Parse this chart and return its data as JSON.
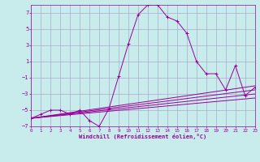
{
  "xlabel": "Windchill (Refroidissement éolien,°C)",
  "bg_color": "#c8ecec",
  "grid_color": "#aaaacc",
  "line_color": "#990099",
  "xmin": 0,
  "xmax": 23,
  "ymin": -7,
  "ymax": 8,
  "yticks": [
    -7,
    -5,
    -3,
    -1,
    1,
    3,
    5,
    7
  ],
  "xticks": [
    0,
    1,
    2,
    3,
    4,
    5,
    6,
    7,
    8,
    9,
    10,
    11,
    12,
    13,
    14,
    15,
    16,
    17,
    18,
    19,
    20,
    21,
    22,
    23
  ],
  "main_x": [
    0,
    1,
    2,
    3,
    4,
    5,
    6,
    7,
    8,
    9,
    10,
    11,
    12,
    13,
    14,
    15,
    16,
    17,
    18,
    19,
    20,
    21,
    22,
    23
  ],
  "main_y": [
    -6.0,
    -5.5,
    -5.0,
    -5.0,
    -5.5,
    -5.0,
    -6.3,
    -7.0,
    -4.8,
    -0.8,
    3.2,
    6.8,
    8.0,
    8.0,
    6.5,
    6.0,
    4.5,
    1.0,
    -0.5,
    -0.5,
    -2.5,
    0.5,
    -3.2,
    -2.2
  ],
  "reg_lines": [
    {
      "x": [
        0,
        23
      ],
      "y": [
        -6.0,
        -2.0
      ]
    },
    {
      "x": [
        0,
        23
      ],
      "y": [
        -6.0,
        -2.5
      ]
    },
    {
      "x": [
        0,
        23
      ],
      "y": [
        -6.0,
        -3.0
      ]
    },
    {
      "x": [
        0,
        23
      ],
      "y": [
        -6.0,
        -3.5
      ]
    }
  ]
}
